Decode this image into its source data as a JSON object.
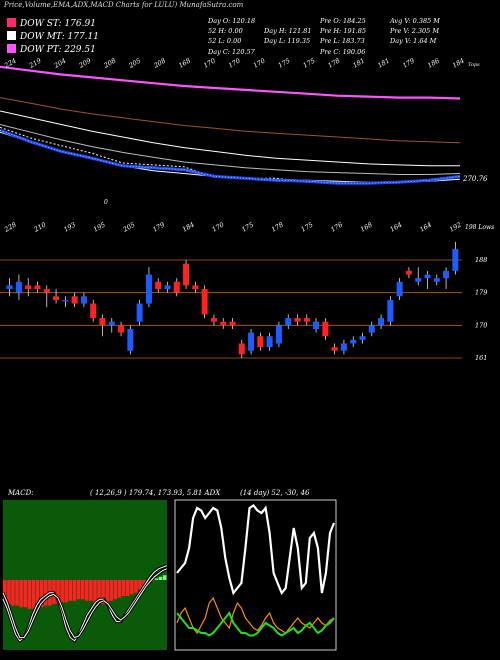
{
  "header": {
    "title": "Price,Volume,EMA,ADX,MACD Charts for LULU) MunafaSutra.com"
  },
  "legend": [
    {
      "label": "DOW ST: 176.91",
      "color": "#ff2a6d"
    },
    {
      "label": "DOW MT: 177.11",
      "color": "#ffffff"
    },
    {
      "label": "DOW PT: 229.51",
      "color": "#ff55ff"
    }
  ],
  "stats": [
    [
      "Day O: 120.18",
      "52 H: 0.00",
      "52 L: 0.00",
      "Day C: 120.57"
    ],
    [
      "Day H: 121.81",
      "Day L: 119.35"
    ],
    [
      "Pre O: 184.25",
      "Pre H: 191.85",
      "Pre L: 183.73",
      "Pre C: 190.06"
    ],
    [
      "Avg V: 0.385 M",
      "Pre V: 2.305 M",
      "Day V: 1.64 M"
    ]
  ],
  "indicators": {
    "macd_label": "MACD:",
    "macd_values": "( 12,26,9 ) 179.74, 173.93, 5.81 ADX",
    "adx_values": "(14 day) 52, -30, 46"
  },
  "colors": {
    "ema_magenta": "#ff55ff",
    "ema_brown": "#a0522d",
    "ema_blue": "#1f4cff",
    "candle_up": "#1f5cff",
    "candle_down": "#ff2222",
    "level_line": "#b5651d",
    "macd_bg": "#0a5a0a",
    "macd_hist_neg": "#ff2222",
    "macd_hist_pos": "#6dff6d"
  },
  "chart_data": [
    {
      "type": "line",
      "name": "ema-price-panel",
      "top_labels": [
        "224",
        "219",
        "204",
        "209",
        "208",
        "205",
        "208",
        "168",
        "170",
        "170",
        "170",
        "175",
        "175",
        "178",
        "181",
        "181",
        "179",
        "186",
        "184"
      ],
      "right_labels": [
        "270.76"
      ],
      "corner_label": "Tops",
      "extra_labels": [
        "0"
      ],
      "series": [
        {
          "values": [
            300,
            296,
            292,
            289,
            286,
            283,
            280,
            278,
            276,
            274,
            272,
            270,
            269,
            268,
            268,
            267
          ]
        },
        {
          "values": [
            268,
            262,
            256,
            251,
            247,
            243,
            239,
            236,
            233,
            231,
            229,
            227,
            225,
            223,
            222,
            221
          ]
        },
        {
          "values": [
            254,
            247,
            240,
            233,
            227,
            221,
            216,
            212,
            208,
            205,
            203,
            201,
            199,
            198,
            197,
            197
          ]
        },
        {
          "values": [
            240,
            232,
            224,
            217,
            211,
            206,
            201,
            198,
            195,
            193,
            191,
            190,
            189,
            188,
            188,
            189
          ]
        },
        {
          "values": [
            232,
            222,
            212,
            204,
            197,
            192,
            189,
            186,
            184,
            183,
            182,
            181,
            180,
            180,
            181,
            183
          ]
        },
        {
          "values": [
            237,
            226,
            218,
            210,
            200,
            198,
            196,
            185,
            184,
            184,
            180,
            180,
            179,
            181,
            182,
            185
          ]
        }
      ],
      "ema_series_blue": [
        234,
        222,
        212,
        205,
        197,
        195,
        193,
        186,
        184,
        182,
        181,
        179,
        179,
        180,
        182,
        186
      ]
    },
    {
      "type": "bar",
      "name": "candlestick-panel",
      "bottom_labels": [
        "228",
        "210",
        "193",
        "195",
        "205",
        "179",
        "184",
        "170",
        "175",
        "178",
        "175",
        "176",
        "168",
        "164",
        "164",
        "192"
      ],
      "right_labels": [
        "198 Lows",
        "188",
        "179",
        "170",
        "161"
      ],
      "levels": [
        188,
        179,
        170,
        161
      ],
      "candles": [
        {
          "o": 180,
          "c": 181,
          "h": 183,
          "l": 178
        },
        {
          "o": 179,
          "c": 182,
          "h": 184,
          "l": 177
        },
        {
          "o": 181,
          "c": 180,
          "h": 183,
          "l": 178
        },
        {
          "o": 181,
          "c": 180,
          "h": 182,
          "l": 179
        },
        {
          "o": 180,
          "c": 179,
          "h": 181,
          "l": 175
        },
        {
          "o": 178,
          "c": 177,
          "h": 180,
          "l": 176
        },
        {
          "o": 177,
          "c": 177,
          "h": 178,
          "l": 175
        },
        {
          "o": 178,
          "c": 176,
          "h": 179,
          "l": 175
        },
        {
          "o": 176,
          "c": 178,
          "h": 179,
          "l": 175
        },
        {
          "o": 176,
          "c": 172,
          "h": 177,
          "l": 171
        },
        {
          "o": 172,
          "c": 170,
          "h": 173,
          "l": 167
        },
        {
          "o": 170,
          "c": 171,
          "h": 172,
          "l": 168
        },
        {
          "o": 170,
          "c": 168,
          "h": 171,
          "l": 167
        },
        {
          "o": 163,
          "c": 169,
          "h": 170,
          "l": 162
        },
        {
          "o": 171,
          "c": 176,
          "h": 177,
          "l": 170
        },
        {
          "o": 176,
          "c": 184,
          "h": 186,
          "l": 175
        },
        {
          "o": 182,
          "c": 180,
          "h": 183,
          "l": 179
        },
        {
          "o": 180,
          "c": 181,
          "h": 182,
          "l": 179
        },
        {
          "o": 182,
          "c": 179,
          "h": 183,
          "l": 178
        },
        {
          "o": 187,
          "c": 181,
          "h": 188,
          "l": 180
        },
        {
          "o": 181,
          "c": 180,
          "h": 182,
          "l": 179
        },
        {
          "o": 180,
          "c": 173,
          "h": 181,
          "l": 172
        },
        {
          "o": 172,
          "c": 171,
          "h": 173,
          "l": 170
        },
        {
          "o": 171,
          "c": 170,
          "h": 172,
          "l": 169
        },
        {
          "o": 171,
          "c": 170,
          "h": 172,
          "l": 169
        },
        {
          "o": 165,
          "c": 162,
          "h": 166,
          "l": 161
        },
        {
          "o": 163,
          "c": 168,
          "h": 169,
          "l": 162
        },
        {
          "o": 167,
          "c": 164,
          "h": 168,
          "l": 163
        },
        {
          "o": 164,
          "c": 167,
          "h": 168,
          "l": 163
        },
        {
          "o": 165,
          "c": 170,
          "h": 171,
          "l": 164
        },
        {
          "o": 170,
          "c": 172,
          "h": 173,
          "l": 169
        },
        {
          "o": 172,
          "c": 171,
          "h": 173,
          "l": 170
        },
        {
          "o": 172,
          "c": 171,
          "h": 173,
          "l": 170
        },
        {
          "o": 169,
          "c": 171,
          "h": 172,
          "l": 168
        },
        {
          "o": 171,
          "c": 167,
          "h": 172,
          "l": 166
        },
        {
          "o": 164,
          "c": 163,
          "h": 165,
          "l": 162
        },
        {
          "o": 163,
          "c": 165,
          "h": 166,
          "l": 162
        },
        {
          "o": 165,
          "c": 166,
          "h": 167,
          "l": 164
        },
        {
          "o": 166,
          "c": 167,
          "h": 168,
          "l": 165
        },
        {
          "o": 168,
          "c": 170,
          "h": 171,
          "l": 167
        },
        {
          "o": 170,
          "c": 172,
          "h": 173,
          "l": 169
        },
        {
          "o": 171,
          "c": 177,
          "h": 178,
          "l": 170
        },
        {
          "o": 178,
          "c": 182,
          "h": 183,
          "l": 177
        },
        {
          "o": 185,
          "c": 184,
          "h": 186,
          "l": 183
        },
        {
          "o": 182,
          "c": 183,
          "h": 186,
          "l": 181
        },
        {
          "o": 183,
          "c": 184,
          "h": 185,
          "l": 180
        },
        {
          "o": 182,
          "c": 183,
          "h": 184,
          "l": 181
        },
        {
          "o": 183,
          "c": 185,
          "h": 186,
          "l": 180
        },
        {
          "o": 185,
          "c": 191,
          "h": 193,
          "l": 184
        }
      ]
    },
    {
      "type": "line",
      "name": "macd-panel",
      "histogram": [
        -14,
        -15,
        -16,
        -16,
        -17,
        -17,
        -18,
        -18,
        -17,
        -17,
        -16,
        -16,
        -15,
        -15,
        -14,
        -14,
        -13,
        -13,
        -12,
        -12,
        -13,
        -13,
        -14,
        -14,
        -15,
        -14,
        -13,
        -12,
        -11,
        -10,
        -10,
        -9,
        -8,
        -6,
        -4,
        -3,
        -1,
        1,
        2,
        3
      ],
      "series": [
        {
          "values": [
            -12,
            -18,
            -26,
            -34,
            -38,
            -36,
            -30,
            -22,
            -16,
            -12,
            -10,
            -8,
            -8,
            -12,
            -20,
            -30,
            -36,
            -38,
            -34,
            -28,
            -22,
            -18,
            -14,
            -12,
            -12,
            -16,
            -22,
            -26,
            -26,
            -22,
            -18,
            -14,
            -10,
            -6,
            -2,
            2,
            5,
            7,
            8,
            9
          ]
        },
        {
          "values": [
            -8,
            -14,
            -22,
            -30,
            -36,
            -36,
            -32,
            -26,
            -20,
            -15,
            -12,
            -10,
            -9,
            -11,
            -17,
            -25,
            -32,
            -36,
            -35,
            -31,
            -26,
            -21,
            -17,
            -14,
            -13,
            -15,
            -19,
            -23,
            -25,
            -23,
            -20,
            -16,
            -12,
            -8,
            -4,
            -1,
            2,
            4,
            6,
            7
          ]
        }
      ]
    },
    {
      "type": "line",
      "name": "adx-panel",
      "series": [
        {
          "values": [
            30,
            32,
            34,
            40,
            52,
            56,
            55,
            52,
            54,
            56,
            55,
            48,
            36,
            28,
            22,
            24,
            26,
            40,
            56,
            57,
            55,
            54,
            56,
            46,
            30,
            26,
            22,
            24,
            36,
            48,
            40,
            24,
            26,
            44,
            46,
            40,
            22,
            30,
            46,
            50
          ]
        },
        {
          "values": [
            10,
            14,
            16,
            12,
            8,
            6,
            9,
            12,
            18,
            20,
            16,
            12,
            10,
            8,
            14,
            18,
            16,
            12,
            10,
            8,
            7,
            9,
            12,
            14,
            10,
            8,
            7,
            6,
            8,
            10,
            12,
            10,
            9,
            8,
            10,
            12,
            10,
            9,
            11,
            12
          ]
        },
        {
          "values": [
            14,
            12,
            10,
            8,
            8,
            7,
            6,
            6,
            5,
            6,
            8,
            10,
            12,
            14,
            10,
            8,
            6,
            6,
            5,
            5,
            6,
            8,
            10,
            9,
            8,
            6,
            5,
            6,
            7,
            8,
            6,
            7,
            9,
            10,
            8,
            6,
            7,
            9,
            10,
            12
          ]
        }
      ]
    }
  ]
}
